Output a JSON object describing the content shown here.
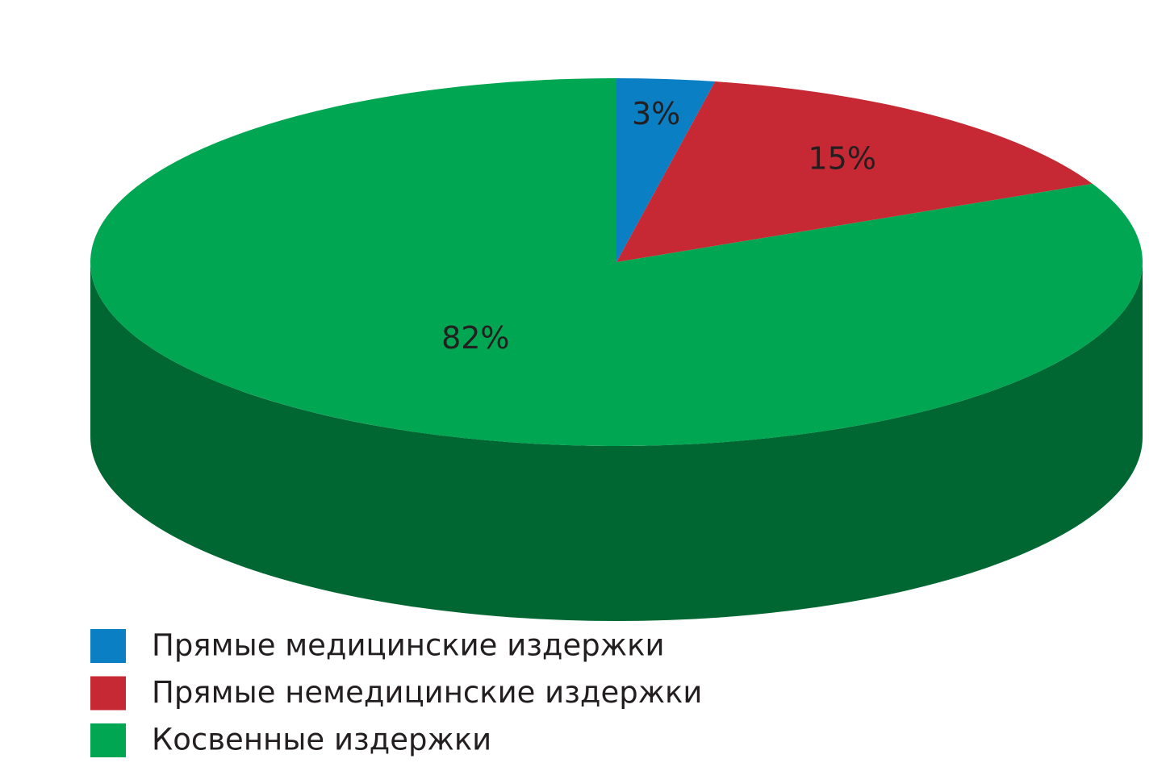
{
  "chart_data": {
    "type": "pie3d",
    "categories": [
      "Прямые медицинские издержки",
      "Прямые немедицинские издержки",
      "Косвенные издержки"
    ],
    "values": [
      3,
      15,
      82
    ],
    "value_labels": [
      "3%",
      "15%",
      "82%"
    ],
    "colors": [
      "#0a7fc4",
      "#c62834",
      "#00a651"
    ]
  }
}
